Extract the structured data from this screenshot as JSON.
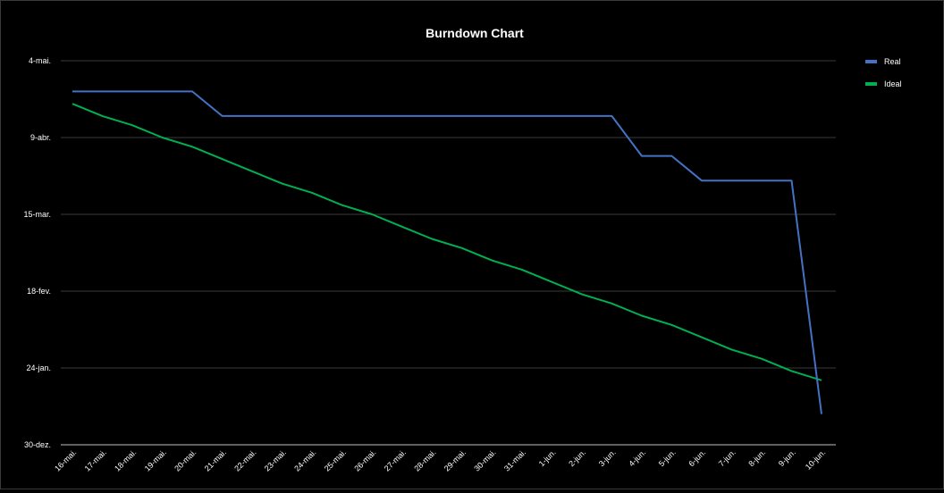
{
  "chart_data": {
    "type": "line",
    "title": "Burndown Chart",
    "xlabel": "",
    "ylabel": "",
    "x": [
      "16-mai.",
      "17-mai.",
      "18-mai.",
      "19-mai.",
      "20-mai.",
      "21-mai.",
      "22-mai.",
      "23-mai.",
      "24-mai.",
      "25-mai.",
      "26-mai.",
      "27-mai.",
      "28-mai.",
      "29-mai.",
      "30-mai.",
      "31-mai.",
      "1-jun.",
      "2-jun.",
      "3-jun.",
      "4-jun.",
      "5-jun.",
      "6-jun.",
      "7-jun.",
      "8-jun.",
      "9-jun.",
      "10-jun."
    ],
    "y_ticks": [
      "30-dez.",
      "24-jan.",
      "18-fev.",
      "15-mar.",
      "9-abr.",
      "4-mai."
    ],
    "y_tick_values": [
      "1899-12-30",
      "1900-01-24",
      "1900-02-18",
      "1900-03-15",
      "1900-04-09",
      "1900-05-04"
    ],
    "ylim": [
      "1899-12-30",
      "1900-05-04"
    ],
    "grid": true,
    "legend_position": "top-right",
    "series": [
      {
        "name": "Real",
        "color": "#4472c4",
        "values": [
          "1900-04-24",
          "1900-04-24",
          "1900-04-24",
          "1900-04-24",
          "1900-04-24",
          "1900-04-16",
          "1900-04-16",
          "1900-04-16",
          "1900-04-16",
          "1900-04-16",
          "1900-04-16",
          "1900-04-16",
          "1900-04-16",
          "1900-04-16",
          "1900-04-16",
          "1900-04-16",
          "1900-04-16",
          "1900-04-16",
          "1900-04-16",
          "1900-04-03",
          "1900-04-03",
          "1900-03-26",
          "1900-03-26",
          "1900-03-26",
          "1900-03-26",
          "1900-01-09"
        ]
      },
      {
        "name": "Ideal",
        "color": "#00b050",
        "values": [
          "1900-04-20",
          "1900-04-16",
          "1900-04-13",
          "1900-04-09",
          "1900-04-06",
          "1900-04-02",
          "1900-03-29",
          "1900-03-25",
          "1900-03-22",
          "1900-03-18",
          "1900-03-15",
          "1900-03-11",
          "1900-03-07",
          "1900-03-04",
          "1900-02-28",
          "1900-02-25",
          "1900-02-21",
          "1900-02-17",
          "1900-02-14",
          "1900-02-10",
          "1900-02-07",
          "1900-02-03",
          "1900-01-30",
          "1900-01-27",
          "1900-01-23",
          "1900-01-20"
        ]
      }
    ]
  }
}
